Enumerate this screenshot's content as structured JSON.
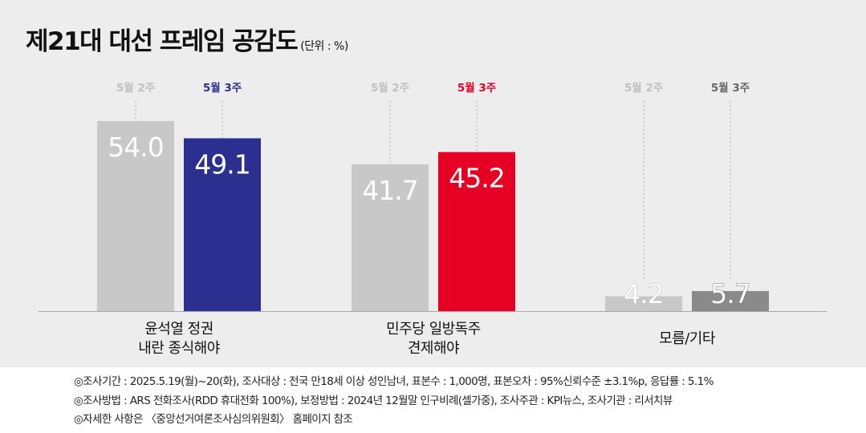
{
  "title": "제21대 대선 프레임 공감도",
  "unit": "(단위 : %)",
  "chart_data": {
    "type": "bar",
    "title": "제21대 대선 프레임 공감도",
    "ylabel": "%",
    "ylim": [
      0,
      54
    ],
    "categories": [
      [
        "윤석열 정권",
        "내란 종식해야"
      ],
      [
        "민주당 일방독주",
        "견제해야"
      ],
      [
        "모름/기타"
      ]
    ],
    "series": [
      {
        "name": "5월 2주",
        "values": [
          54.0,
          41.7,
          4.2
        ],
        "color": "#c8c8c8",
        "label_colors": [
          "#c0c0c0",
          "#c0c0c0",
          "#c0c0c0"
        ]
      },
      {
        "name": "5월 3주",
        "values": [
          49.1,
          45.2,
          5.7
        ],
        "colors": [
          "#2b3090",
          "#e60023",
          "#8a8a8a"
        ],
        "label_colors": [
          "#2b3090",
          "#e60023",
          "#666666"
        ]
      }
    ],
    "value_labels": [
      [
        "54.0",
        "41.7",
        "4.2"
      ],
      [
        "49.1",
        "45.2",
        "5.7"
      ]
    ],
    "grid": false,
    "legend": "above each bar"
  },
  "footer": [
    "◎조사기간 : 2025.5.19(월)~20(화), 조사대상 : 전국 만18세 이상 성인남녀, 표본수 : 1,000명, 표본오차 : 95%신뢰수준 ±3.1%p, 응답률 : 5.1%",
    "◎조사방법 : ARS 전화조사(RDD 휴대전화 100%), 보정방법 : 2024년 12월말 인구비례(셀가중), 조사주관 : KPI뉴스, 조사기관 : 리서치뷰",
    "◎자세한 사항은 〈중앙선거여론조사심의위원회〉 홈페이지 참조"
  ]
}
